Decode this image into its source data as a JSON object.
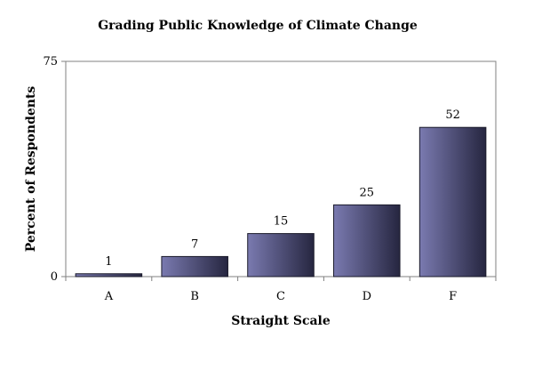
{
  "chart_data": {
    "type": "bar",
    "title": "Grading Public Knowledge of Climate Change",
    "xlabel": "Straight Scale",
    "ylabel": "Percent of Respondents",
    "categories": [
      "A",
      "B",
      "C",
      "D",
      "F"
    ],
    "values": [
      1,
      7,
      15,
      25,
      52
    ],
    "ylim": [
      0,
      75
    ],
    "yticks": [
      0,
      75
    ],
    "grid": false,
    "legend": "none",
    "bar_gradient": [
      "#7a7ab0",
      "#262640"
    ]
  }
}
